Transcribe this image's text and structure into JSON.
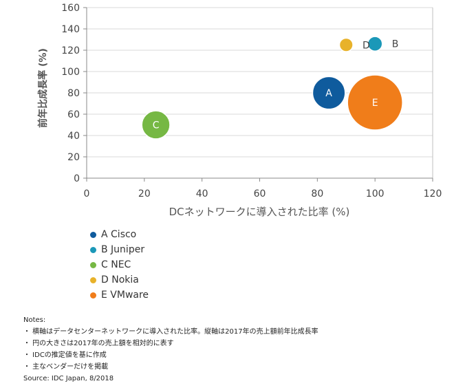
{
  "chart_data": {
    "type": "bubble",
    "xlabel": "DCネットワークに導入された比率 (%)",
    "ylabel": "前年比成長率 (%)",
    "xlim": [
      0,
      120
    ],
    "ylim": [
      0,
      160
    ],
    "xticks": [
      0,
      20,
      40,
      60,
      80,
      100,
      120
    ],
    "yticks": [
      0,
      20,
      40,
      60,
      80,
      100,
      120,
      140,
      160
    ],
    "grid": "horizontal",
    "series": [
      {
        "name": "A Cisco",
        "letter": "A",
        "x": 84,
        "y": 80,
        "size": 0.35,
        "color": "#0f5b9d",
        "label_position": "inside"
      },
      {
        "name": "B Juniper",
        "letter": "B",
        "x": 100,
        "y": 126,
        "size": 0.07,
        "color": "#1b98b8",
        "label_position": "right"
      },
      {
        "name": "C NEC",
        "letter": "C",
        "x": 24,
        "y": 50,
        "size": 0.26,
        "color": "#76b844",
        "label_position": "inside"
      },
      {
        "name": "D Nokia",
        "letter": "D",
        "x": 90,
        "y": 125,
        "size": 0.06,
        "color": "#e8b22a",
        "label_position": "right"
      },
      {
        "name": "E VMware",
        "letter": "E",
        "x": 100,
        "y": 71,
        "size": 1.0,
        "color": "#f07d1a",
        "label_position": "inside"
      }
    ]
  },
  "notes": {
    "title": "Notes:",
    "items": [
      "・ 横軸はデータセンターネットワークに導入された比率。縦軸は2017年の売上額前年比成長率",
      "・ 円の大きさは2017年の売上額を相対的に表す",
      "・ IDCの推定値を基に作成",
      "・ 主なベンダーだけを掲載"
    ],
    "source": "Source: IDC Japan, 8/2018"
  }
}
